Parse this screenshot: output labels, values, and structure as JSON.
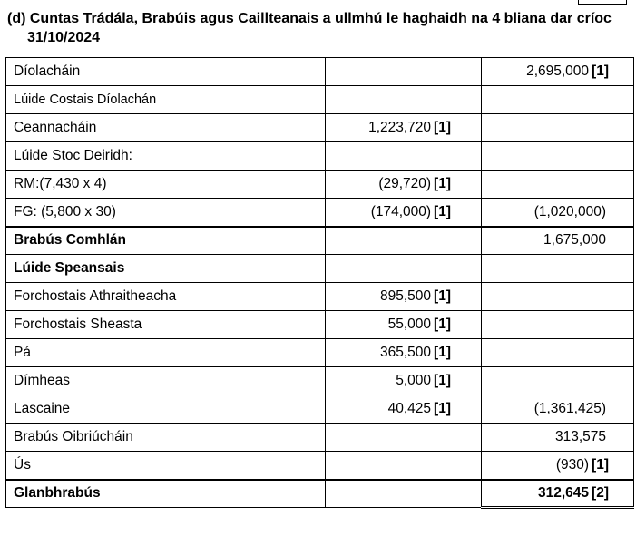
{
  "heading": {
    "line1": "(d) Cuntas Trádála, Brabúis agus Caillteanais a ullmhú le haghaidh na 4 bliana dar críoc",
    "line2": "31/10/2024"
  },
  "rows": [
    {
      "label": "Díolacháin",
      "col2": "",
      "col2_mark": "",
      "col3": "2,695,000",
      "col3_mark": "[1]"
    },
    {
      "label": "Lúide Costais Díolachán",
      "col2": "",
      "col2_mark": "",
      "col3": "",
      "col3_mark": ""
    },
    {
      "label": "Ceannacháin",
      "col2": "1,223,720",
      "col2_mark": "[1]",
      "col3": "",
      "col3_mark": ""
    },
    {
      "label": "Lúide Stoc Deiridh:",
      "col2": "",
      "col2_mark": "",
      "col3": "",
      "col3_mark": ""
    },
    {
      "label": "RM:(7,430 x 4)",
      "col2": "(29,720)",
      "col2_mark": "[1]",
      "col3": "",
      "col3_mark": ""
    },
    {
      "label": "FG: (5,800 x 30)",
      "col2": "(174,000)",
      "col2_mark": "[1]",
      "col3": "(1,020,000)",
      "col3_mark": ""
    },
    {
      "label": "Brabús Comhlán",
      "col2": "",
      "col2_mark": "",
      "col3": "1,675,000",
      "col3_mark": ""
    },
    {
      "label": "Lúide Speansais",
      "col2": "",
      "col2_mark": "",
      "col3": "",
      "col3_mark": ""
    },
    {
      "label": "Forchostais Athraitheacha",
      "col2": "895,500",
      "col2_mark": "[1]",
      "col3": "",
      "col3_mark": ""
    },
    {
      "label": "Forchostais Sheasta",
      "col2": "55,000",
      "col2_mark": "[1]",
      "col3": "",
      "col3_mark": ""
    },
    {
      "label": "Pá",
      "col2": "365,500",
      "col2_mark": "[1]",
      "col3": "",
      "col3_mark": ""
    },
    {
      "label": "Dímheas",
      "col2": "5,000",
      "col2_mark": "[1]",
      "col3": "",
      "col3_mark": ""
    },
    {
      "label": "Lascaine",
      "col2": "40,425",
      "col2_mark": "[1]",
      "col3": "(1,361,425)",
      "col3_mark": ""
    },
    {
      "label": "Brabús Oibriúcháin",
      "col2": "",
      "col2_mark": "",
      "col3": "313,575",
      "col3_mark": ""
    },
    {
      "label": "Ús",
      "col2": "",
      "col2_mark": "",
      "col3": "(930)",
      "col3_mark": "[1]"
    },
    {
      "label": "Glanbhrabús",
      "col2": "",
      "col2_mark": "",
      "col3": "312,645",
      "col3_mark": "[2]"
    }
  ]
}
